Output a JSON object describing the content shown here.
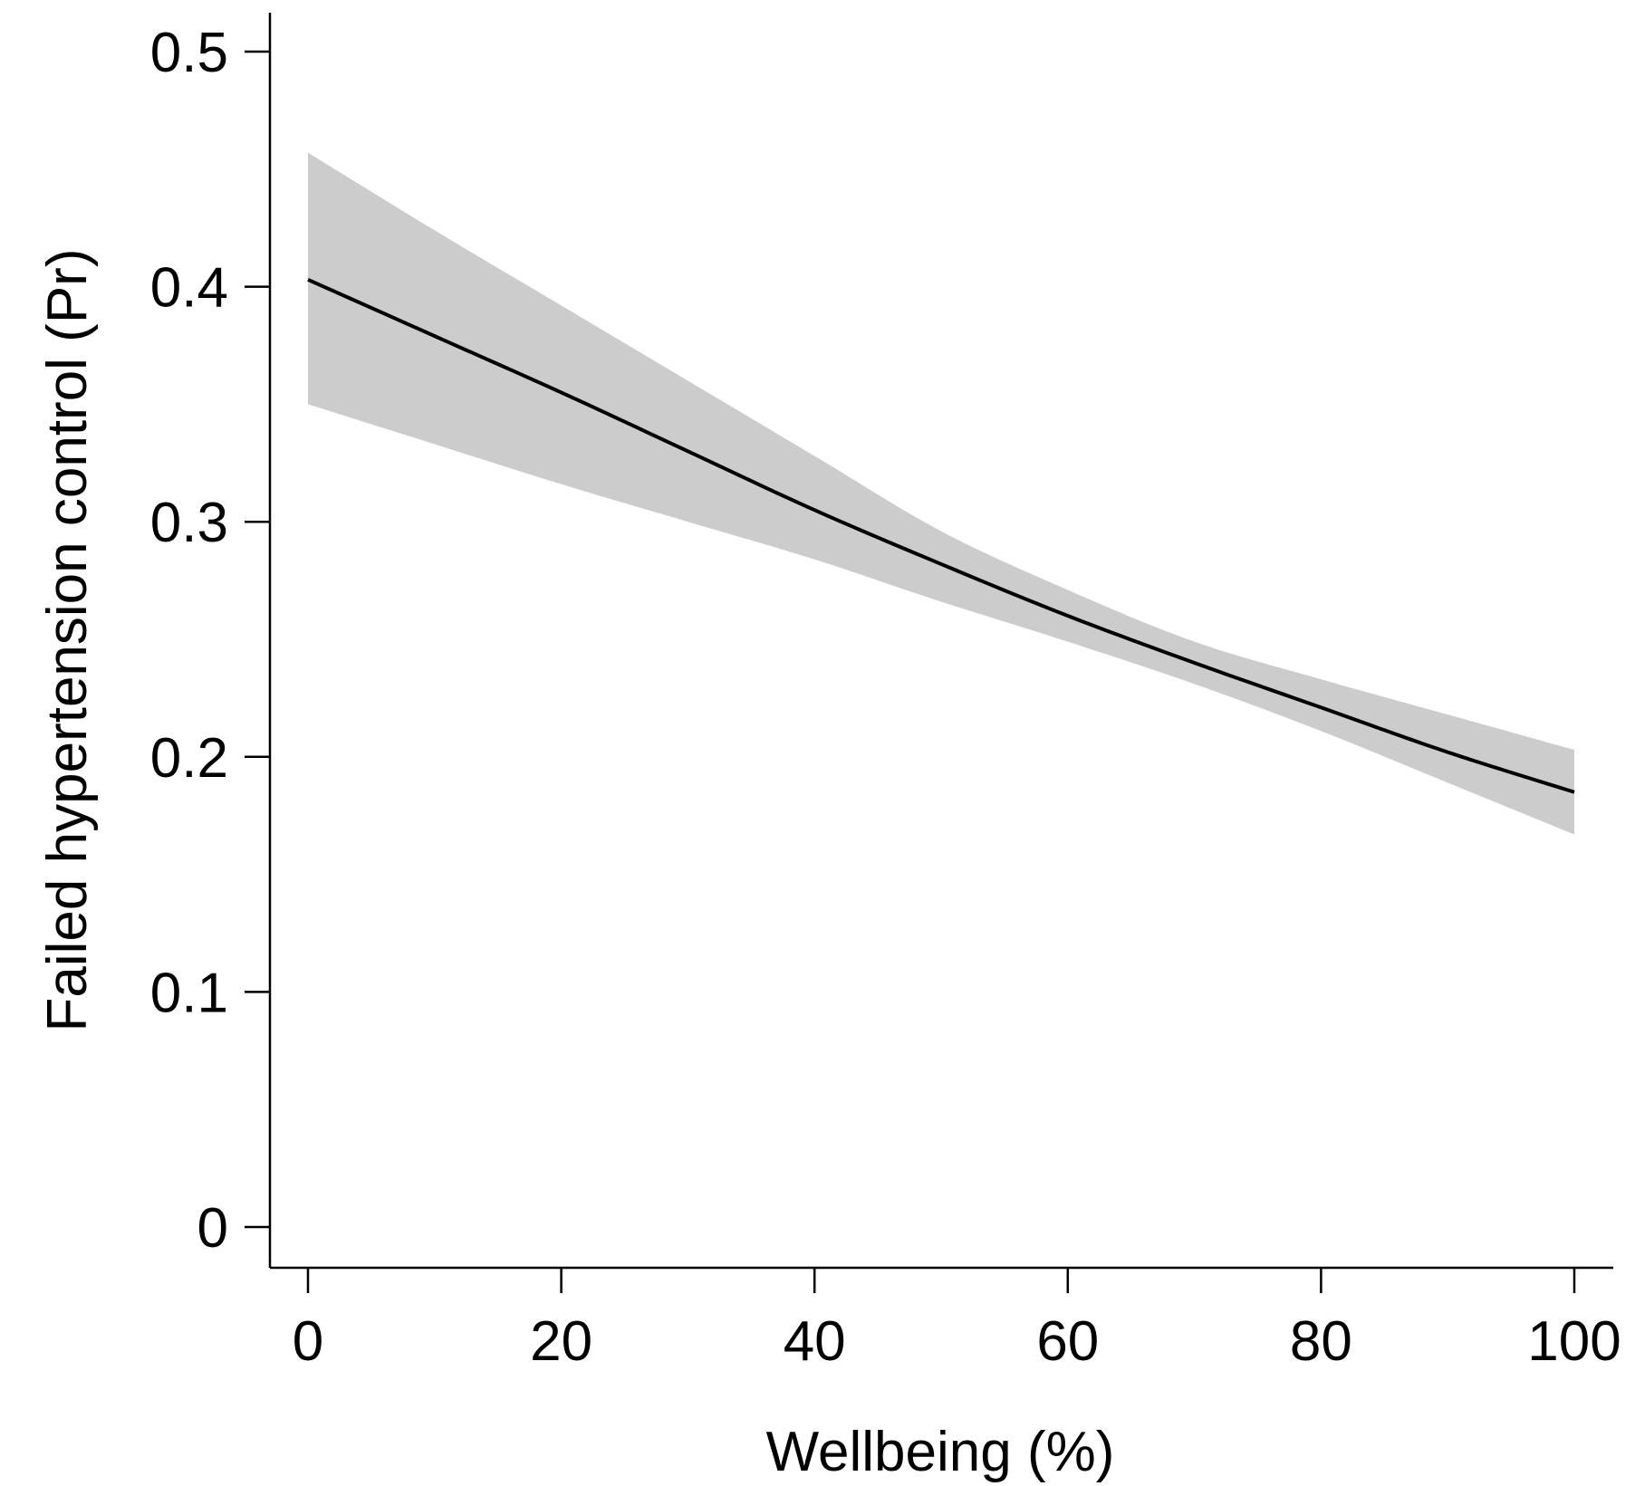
{
  "chart_data": {
    "type": "line",
    "xlabel": "Wellbeing (%)",
    "ylabel": "Failed hypertension control (Pr)",
    "xlim": [
      0,
      100
    ],
    "ylim": [
      0,
      0.5
    ],
    "x_ticks": [
      0,
      20,
      40,
      60,
      80,
      100
    ],
    "x_tick_labels": [
      "0",
      "20",
      "40",
      "60",
      "80",
      "100"
    ],
    "y_ticks": [
      0,
      0.1,
      0.2,
      0.3,
      0.4,
      0.5
    ],
    "y_tick_labels": [
      "0",
      "0.1",
      "0.2",
      "0.3",
      "0.4",
      "0.5"
    ],
    "grid": false,
    "series": [
      {
        "x": [
          0,
          10,
          20,
          30,
          40,
          50,
          60,
          70,
          80,
          90,
          100
        ],
        "y": [
          0.403,
          0.379,
          0.355,
          0.33,
          0.305,
          0.282,
          0.26,
          0.24,
          0.221,
          0.202,
          0.185
        ],
        "ci_lower": [
          0.35,
          0.333,
          0.316,
          0.3,
          0.284,
          0.266,
          0.249,
          0.231,
          0.211,
          0.189,
          0.167
        ],
        "ci_upper": [
          0.457,
          0.424,
          0.392,
          0.36,
          0.328,
          0.296,
          0.271,
          0.249,
          0.233,
          0.218,
          0.203
        ],
        "line_color": "#000000",
        "band_color": "#cccccc"
      }
    ]
  }
}
